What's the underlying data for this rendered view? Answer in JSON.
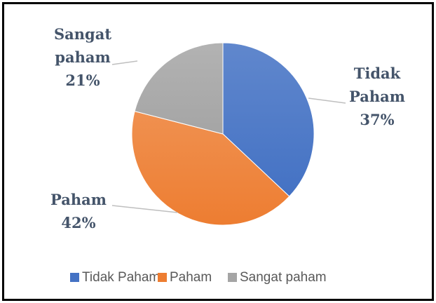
{
  "chart_data": {
    "type": "pie",
    "categories": [
      "Tidak Paham",
      "Paham",
      "Sangat paham"
    ],
    "values": [
      37,
      42,
      21
    ],
    "value_labels": [
      "37%",
      "42%",
      "21%"
    ],
    "colors": [
      "#4472c4",
      "#ed7d31",
      "#a5a5a5"
    ],
    "legend": "bottom"
  }
}
